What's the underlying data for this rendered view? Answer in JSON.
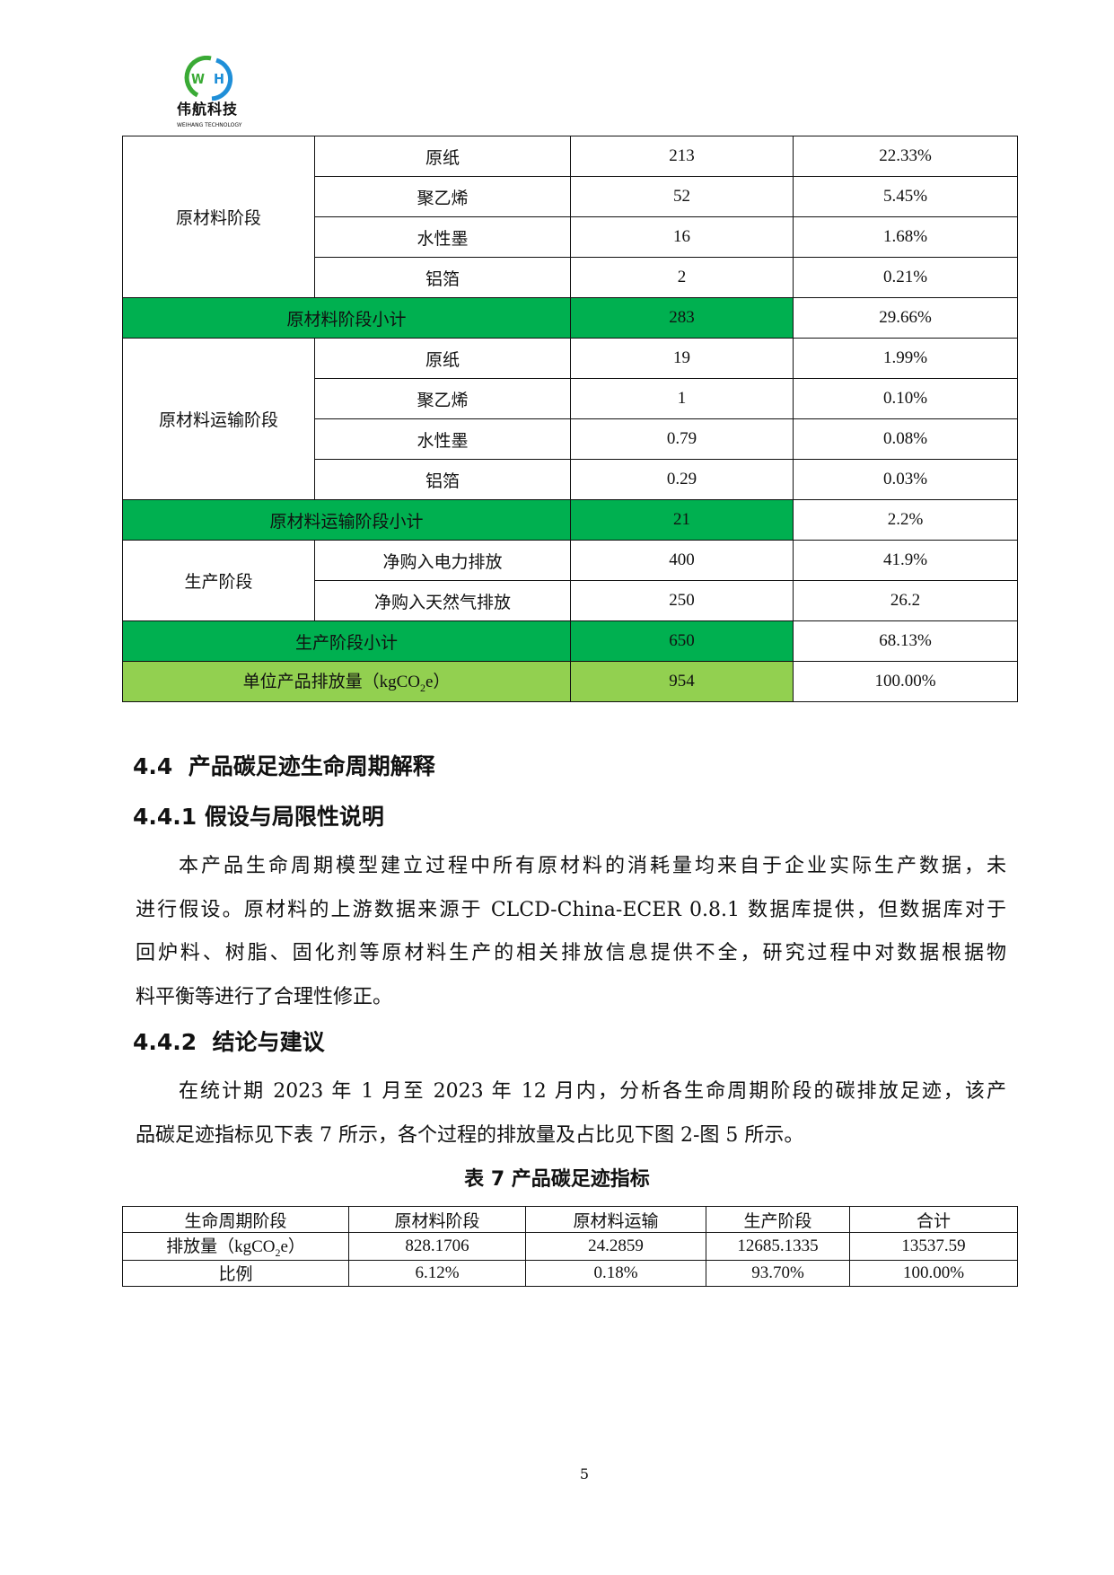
{
  "header": {
    "logo_text": "伟航科技",
    "logo_subtext": "WEIHANG TECHNOLOGY",
    "colors": {
      "green": "#3aaa35",
      "blue": "#1f8fd8"
    }
  },
  "table1": {
    "colors": {
      "subtotal": "#00b050",
      "total": "#92d050"
    },
    "groups": [
      {
        "stage": "原材料阶段",
        "items": [
          [
            "原纸",
            "213",
            "22.33%"
          ],
          [
            "聚乙烯",
            "52",
            "5.45%"
          ],
          [
            "水性墨",
            "16",
            "1.68%"
          ],
          [
            "铝箔",
            "2",
            "0.21%"
          ]
        ],
        "subtotal": [
          "原材料阶段小计",
          "283",
          "29.66%"
        ]
      },
      {
        "stage": "原材料运输阶段",
        "items": [
          [
            "原纸",
            "19",
            "1.99%"
          ],
          [
            "聚乙烯",
            "1",
            "0.10%"
          ],
          [
            "水性墨",
            "0.79",
            "0.08%"
          ],
          [
            "铝箔",
            "0.29",
            "0.03%"
          ]
        ],
        "subtotal": [
          "原材料运输阶段小计",
          "21",
          "2.2%"
        ]
      },
      {
        "stage": "生产阶段",
        "items": [
          [
            "净购入电力排放",
            "400",
            "41.9%"
          ],
          [
            "净购入天然气排放",
            "250",
            "26.2"
          ]
        ],
        "subtotal": [
          "生产阶段小计",
          "650",
          "68.13%"
        ]
      }
    ],
    "total": {
      "label_pre": "单位产品排放量（kgCO",
      "label_sub": "2",
      "label_post": "e）",
      "value": "954",
      "percent": "100.00%"
    }
  },
  "section_4_4": "4.4  产品碳足迹生命周期解释",
  "section_4_4_1": "4.4.1 假设与局限性说明",
  "para1": [
    "本产品生命周期模型建立过程中所有原材料的消耗量均来自于企业实际生产数据，未",
    "进行假设。原材料的上游数据来源于 CLCD-China-ECER 0.8.1 数据库提供，但数据库对于",
    "回炉料、树脂、固化剂等原材料生产的相关排放信息提供不全，研究过程中对数据根据物",
    "料平衡等进行了合理性修正。"
  ],
  "section_4_4_2": "4.4.2  结论与建议",
  "para2": [
    "在统计期 2023 年 1 月至 2023 年 12 月内，分析各生命周期阶段的碳排放足迹，该产",
    "品碳足迹指标见下表 7 所示，各个过程的排放量及占比见下图 2-图 5 所示。"
  ],
  "table2": {
    "caption": "表 7 产品碳足迹指标",
    "header": [
      "生命周期阶段",
      "原材料阶段",
      "原材料运输",
      "生产阶段",
      "合计"
    ],
    "row1_label_pre": "排放量（kgCO",
    "row1_label_sub": "2",
    "row1_label_post": "e）",
    "row1": [
      "828.1706",
      "24.2859",
      "12685.1335",
      "13537.59"
    ],
    "row2": [
      "比例",
      "6.12%",
      "0.18%",
      "93.70%",
      "100.00%"
    ]
  },
  "page_number": "5"
}
